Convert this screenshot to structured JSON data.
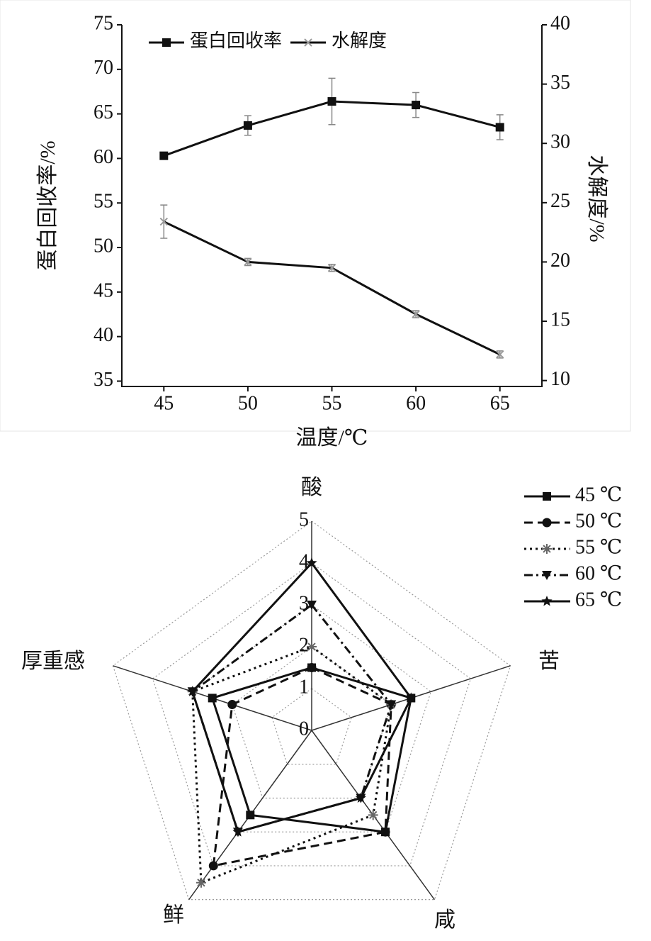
{
  "chart_data": [
    {
      "type": "line",
      "x": [
        45,
        50,
        55,
        60,
        65
      ],
      "xlim": [
        42.5,
        67.5
      ],
      "xticks": [
        45,
        50,
        55,
        60,
        65
      ],
      "ylim": [
        34.4,
        75
      ],
      "yticks": [
        35,
        40,
        45,
        50,
        55,
        60,
        65,
        70,
        75
      ],
      "y2lim": [
        9.5,
        40
      ],
      "y2ticks": [
        10,
        15,
        20,
        25,
        30,
        35,
        40
      ],
      "xlabel": "温度/℃",
      "ylabel": "蛋白回收率/%",
      "y2label": "水解度/%",
      "legend": "top-left",
      "series": [
        {
          "name": "蛋白回收率",
          "color": "#111111",
          "marker": "square",
          "values": [
            60.3,
            63.7,
            66.4,
            66.0,
            63.5
          ],
          "errors": [
            0.3,
            1.1,
            2.6,
            1.4,
            1.4
          ]
        },
        {
          "name": "水解度",
          "color": "#999999",
          "marker": "x",
          "axis": "y2",
          "values": [
            23.4,
            20.0,
            19.5,
            15.6,
            12.2
          ],
          "errors": [
            1.4,
            0.3,
            0.3,
            0.3,
            0.3
          ]
        }
      ]
    },
    {
      "type": "radar",
      "categories": [
        "酸",
        "苦",
        "咸",
        "鲜",
        "厚重感"
      ],
      "rlim": [
        0,
        5
      ],
      "rticks": [
        0,
        1,
        2,
        3,
        4,
        5
      ],
      "grid": true,
      "legend": "top-right",
      "series": [
        {
          "name": "45 ℃",
          "color": "#111111",
          "marker": "square",
          "dash": "solid",
          "values": [
            1.5,
            2.5,
            3,
            2.5,
            2.5
          ]
        },
        {
          "name": "50 ℃",
          "color": "#111111",
          "marker": "circle",
          "dash": "dashed",
          "values": [
            1.5,
            2,
            3,
            4,
            2
          ]
        },
        {
          "name": "55 ℃",
          "color": "#111111",
          "marker": "asterisk",
          "dash": "dotted",
          "values": [
            2,
            2,
            2.5,
            4.5,
            3
          ]
        },
        {
          "name": "60 ℃",
          "color": "#111111",
          "marker": "triangle-down",
          "dash": "dashdot",
          "values": [
            3,
            2,
            2,
            3,
            3
          ]
        },
        {
          "name": "65 ℃",
          "color": "#111111",
          "marker": "star",
          "dash": "solid",
          "values": [
            4,
            2.5,
            2,
            3,
            3
          ]
        }
      ]
    }
  ]
}
